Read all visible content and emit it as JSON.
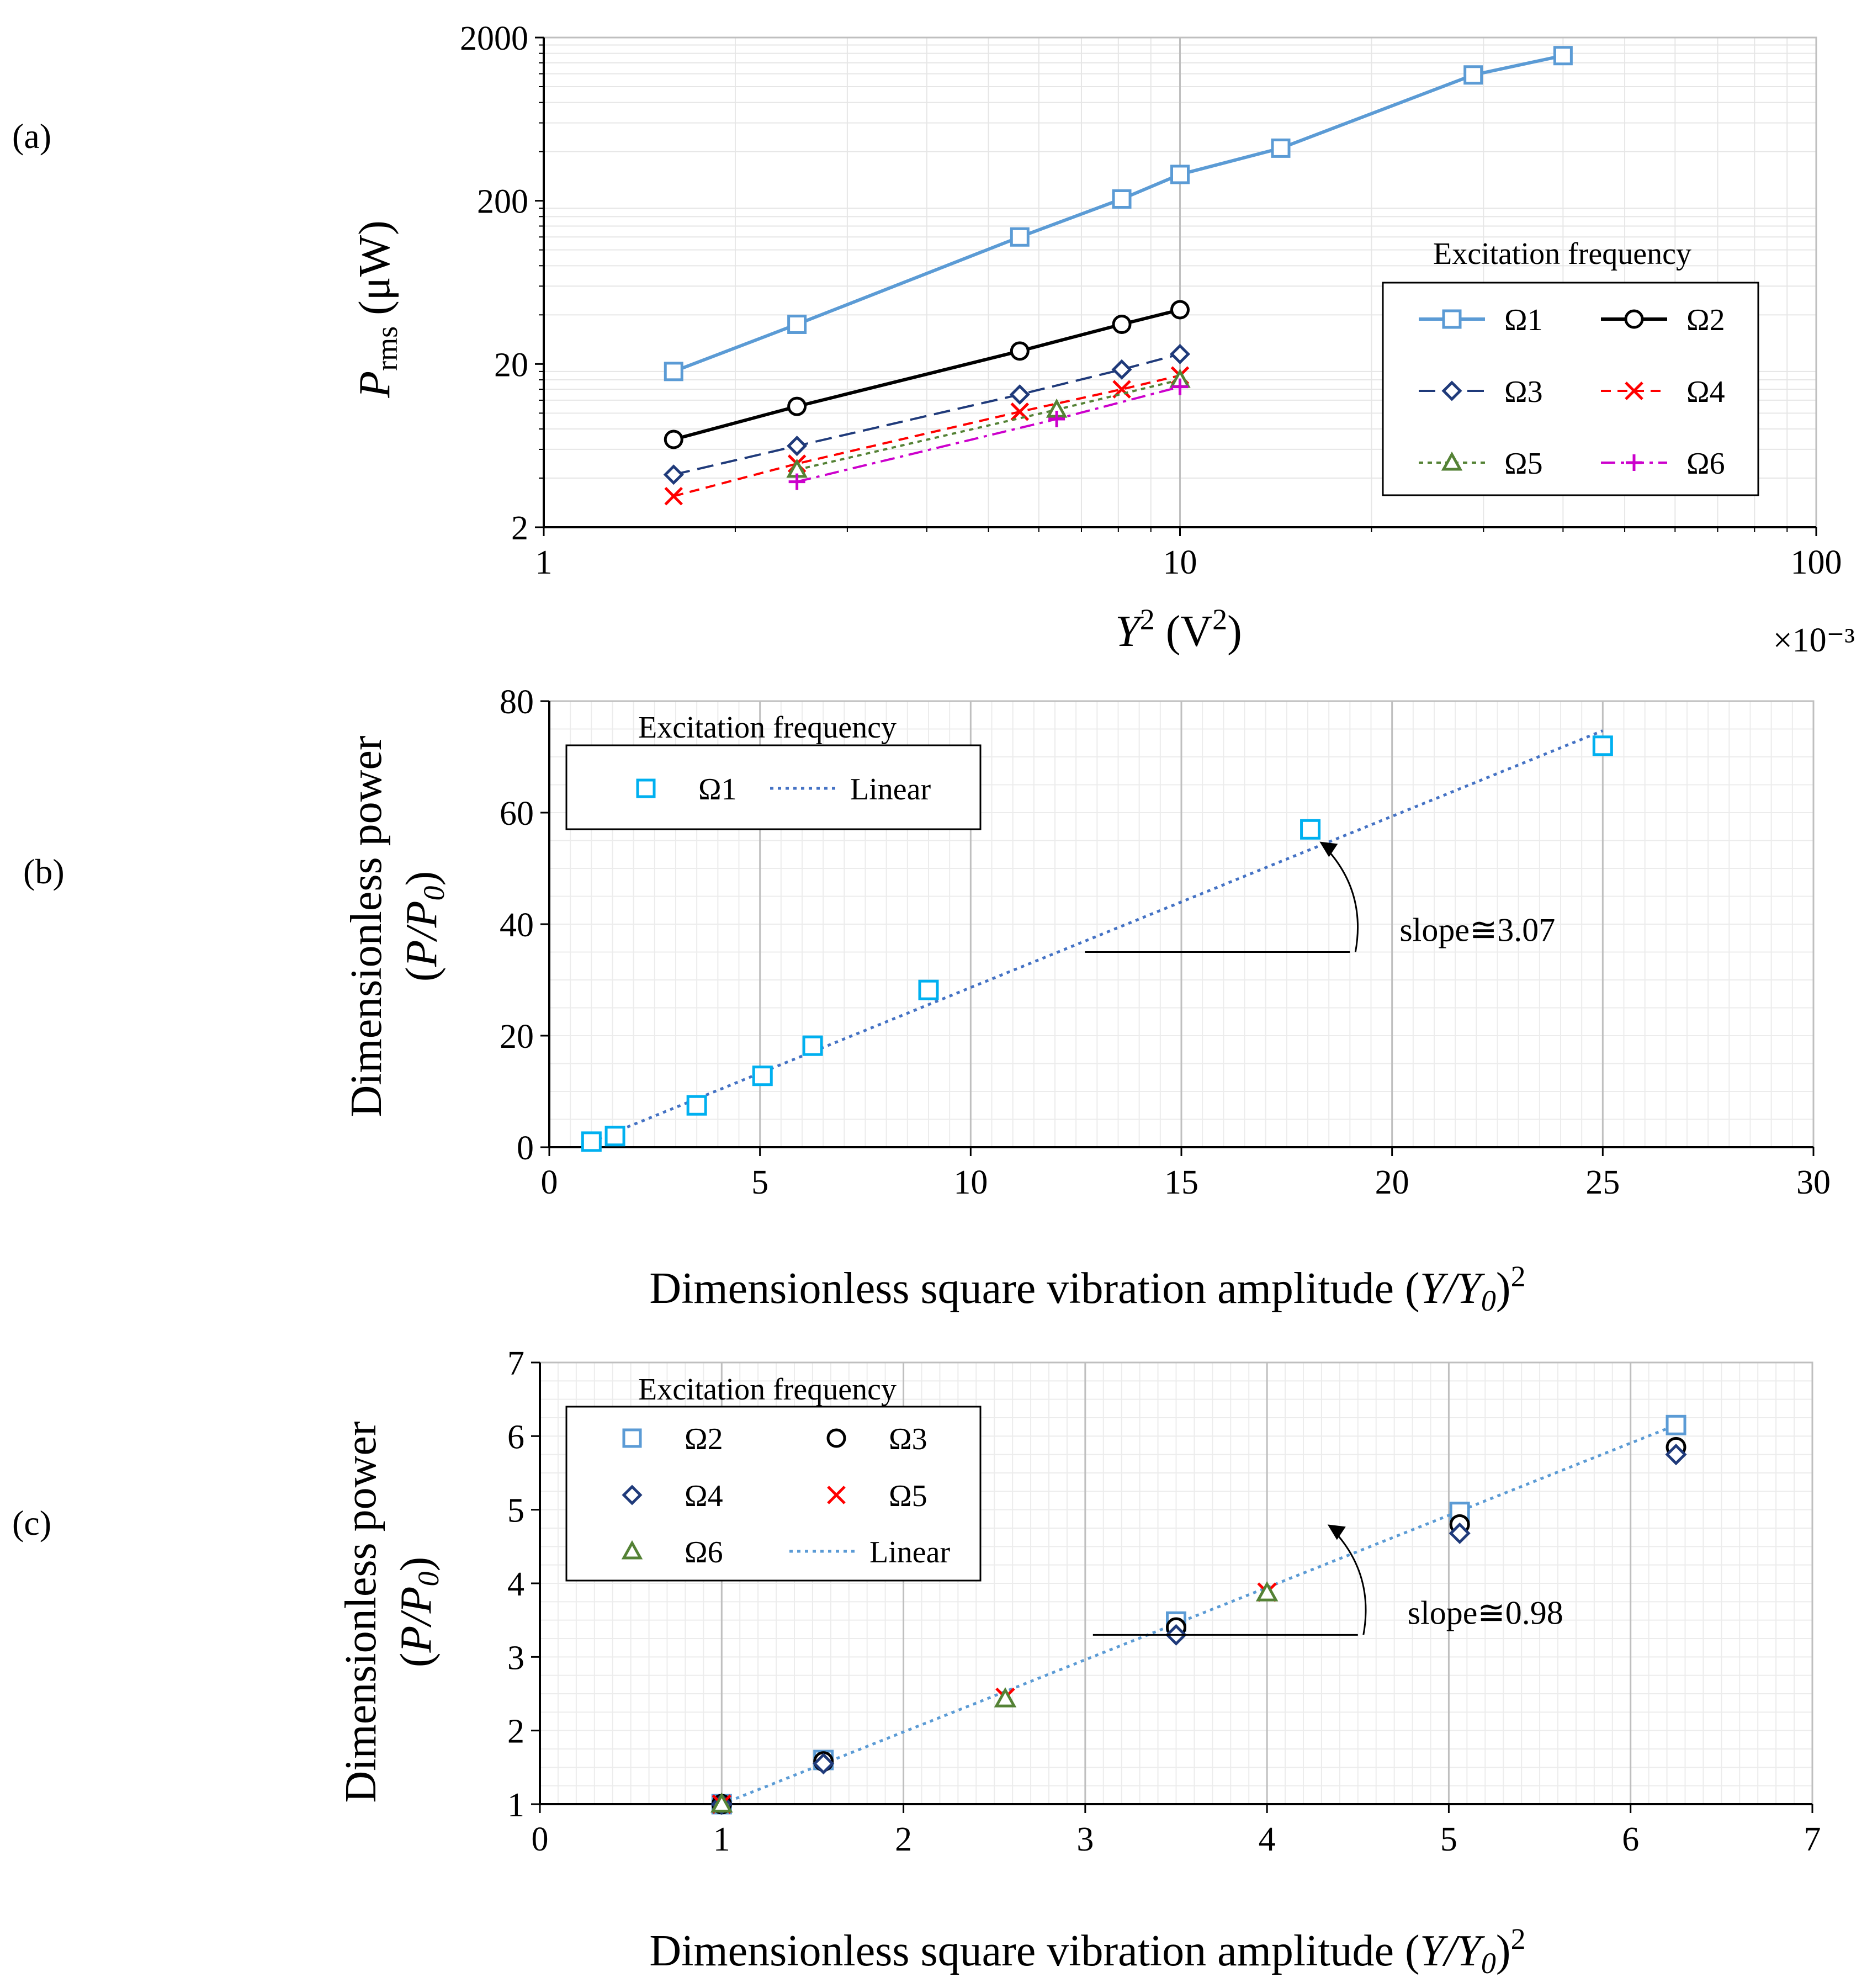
{
  "panels": {
    "a": "(a)",
    "b": "(b)",
    "c": "(c)"
  },
  "chart_data": [
    {
      "id": "a",
      "type": "line",
      "xscale": "log",
      "yscale": "log",
      "xlim": [
        1,
        100
      ],
      "ylim": [
        2,
        2000
      ],
      "xticks": [
        1,
        10,
        100
      ],
      "xtick_labels": [
        "1",
        "10",
        "100"
      ],
      "yticks": [
        2,
        20,
        200,
        2000
      ],
      "ytick_labels": [
        "2",
        "20",
        "200",
        "2000"
      ],
      "x_multiplier": "×10⁻³",
      "xlabel_main": "Y",
      "xlabel_sup": "2",
      "xlabel_rest": " (V",
      "xlabel_sup2": "2",
      "xlabel_end": ")",
      "ylabel_main": "P",
      "ylabel_sub": "rms",
      "ylabel_rest": " (μW)",
      "grid": true,
      "legend_title": "Excitation frequency",
      "legend_position": "right",
      "series": [
        {
          "name": "Ω1",
          "marker": "square",
          "dash": "solid",
          "color": "#5b9bd5",
          "x": [
            1.6,
            2.5,
            5.6,
            8.1,
            10,
            14.4,
            28.9,
            40
          ],
          "y": [
            18,
            35,
            120,
            205,
            290,
            420,
            1180,
            1550
          ]
        },
        {
          "name": "Ω2",
          "marker": "circle",
          "dash": "solid",
          "color": "#000000",
          "x": [
            1.6,
            2.5,
            5.6,
            8.1,
            10
          ],
          "y": [
            6.9,
            11,
            24,
            35,
            43
          ]
        },
        {
          "name": "Ω3",
          "marker": "diamond",
          "dash": "longdash",
          "color": "#1f3a7a",
          "x": [
            1.6,
            2.5,
            5.6,
            8.1,
            10
          ],
          "y": [
            4.2,
            6.3,
            13,
            18.5,
            23
          ]
        },
        {
          "name": "Ω4",
          "marker": "x",
          "dash": "dash",
          "color": "#ff0000",
          "x": [
            1.6,
            2.5,
            5.6,
            8.1,
            10
          ],
          "y": [
            3.1,
            4.9,
            10.2,
            14,
            17
          ]
        },
        {
          "name": "Ω5",
          "marker": "triangle",
          "dash": "dot",
          "color": "#548235",
          "x": [
            2.5,
            6.4,
            10
          ],
          "y": [
            4.5,
            10.5,
            16
          ]
        },
        {
          "name": "Ω6",
          "marker": "plus",
          "dash": "dashdot",
          "color": "#cc00cc",
          "x": [
            2.5,
            6.4,
            10
          ],
          "y": [
            3.8,
            9.2,
            14.5
          ]
        }
      ]
    },
    {
      "id": "b",
      "type": "scatter",
      "xlim": [
        0,
        30
      ],
      "ylim": [
        0,
        80
      ],
      "xticks": [
        0,
        5,
        10,
        15,
        20,
        25,
        30
      ],
      "xtick_labels": [
        "0",
        "5",
        "10",
        "15",
        "20",
        "25",
        "30"
      ],
      "yticks": [
        0,
        20,
        40,
        60,
        80
      ],
      "ytick_labels": [
        "0",
        "20",
        "40",
        "60",
        "80"
      ],
      "xlabel_main": "Dimensionless square vibration amplitude (",
      "xlabel_italic": "Y/Y",
      "xlabel_sub": "0",
      "xlabel_end": ")",
      "xlabel_sup": "2",
      "ylabel_line1": "Dimensionless power",
      "ylabel_line2_a": "(",
      "ylabel_line2_italic": "P/P",
      "ylabel_line2_sub": "0",
      "ylabel_line2_b": ")",
      "grid": true,
      "legend_title": "Excitation frequency",
      "legend_position": "top-left",
      "series": [
        {
          "name": "Ω1",
          "marker": "square",
          "color": "#00b0f0",
          "x": [
            1,
            1.56,
            3.5,
            5.06,
            6.25,
            9,
            18.06,
            25
          ],
          "y": [
            1,
            2,
            7.5,
            12.8,
            18.2,
            28.2,
            57,
            72
          ]
        }
      ],
      "fit": {
        "name": "Linear",
        "x": [
          1,
          25
        ],
        "y": [
          1,
          74.7
        ],
        "color": "#4472c4"
      },
      "annotation": "slope≅3.07",
      "annotation_anchor": {
        "x": 19,
        "y": 35
      }
    },
    {
      "id": "c",
      "type": "scatter",
      "xlim": [
        0,
        7
      ],
      "ylim": [
        1,
        7
      ],
      "xticks": [
        0,
        1,
        2,
        3,
        4,
        5,
        6,
        7
      ],
      "xtick_labels": [
        "0",
        "1",
        "2",
        "3",
        "4",
        "5",
        "6",
        "7"
      ],
      "yticks": [
        1,
        2,
        3,
        4,
        5,
        6,
        7
      ],
      "ytick_labels": [
        "1",
        "2",
        "3",
        "4",
        "5",
        "6",
        "7"
      ],
      "xlabel_main": "Dimensionless square vibration amplitude (",
      "xlabel_italic": "Y/Y",
      "xlabel_sub": "0",
      "xlabel_end": ")",
      "xlabel_sup": "2",
      "ylabel_line1": "Dimensionless power",
      "ylabel_line2_a": "(",
      "ylabel_line2_italic": "P/P",
      "ylabel_line2_sub": "0",
      "ylabel_line2_b": ")",
      "grid": true,
      "legend_title": "Excitation frequency",
      "legend_position": "top-left",
      "series": [
        {
          "name": "Ω2",
          "marker": "square",
          "color": "#5b9bd5",
          "x": [
            1,
            1.56,
            3.5,
            5.06,
            6.25
          ],
          "y": [
            1,
            1.6,
            3.48,
            4.97,
            6.15
          ]
        },
        {
          "name": "Ω3",
          "marker": "circle",
          "color": "#000000",
          "x": [
            1,
            1.56,
            3.5,
            5.06,
            6.25
          ],
          "y": [
            1,
            1.58,
            3.4,
            4.8,
            5.85
          ]
        },
        {
          "name": "Ω4",
          "marker": "diamond",
          "color": "#1f3a7a",
          "x": [
            1,
            1.56,
            3.5,
            5.06,
            6.25
          ],
          "y": [
            1,
            1.55,
            3.3,
            4.68,
            5.75
          ]
        },
        {
          "name": "Ω5",
          "marker": "x",
          "color": "#ff0000",
          "x": [
            1,
            2.56,
            4
          ],
          "y": [
            1,
            2.45,
            3.88
          ]
        },
        {
          "name": "Ω6",
          "marker": "triangle",
          "color": "#548235",
          "x": [
            1,
            2.56,
            4
          ],
          "y": [
            1,
            2.43,
            3.87
          ]
        }
      ],
      "fit": {
        "name": "Linear",
        "x": [
          1,
          6.25
        ],
        "y": [
          1,
          6.15
        ],
        "color": "#5b9bd5"
      },
      "annotation": "slope≅0.98",
      "annotation_anchor": {
        "x": 4.5,
        "y": 3.3
      }
    }
  ]
}
